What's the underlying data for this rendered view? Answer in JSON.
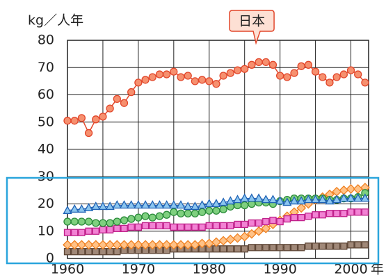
{
  "chart_data": {
    "type": "line",
    "y_label": "kg／人年",
    "x_label": "年",
    "x": [
      1960,
      1961,
      1962,
      1963,
      1964,
      1965,
      1966,
      1967,
      1968,
      1969,
      1970,
      1971,
      1972,
      1973,
      1974,
      1975,
      1976,
      1977,
      1978,
      1979,
      1980,
      1981,
      1982,
      1983,
      1984,
      1985,
      1986,
      1987,
      1988,
      1989,
      1990,
      1991,
      1992,
      1993,
      1994,
      1995,
      1996,
      1997,
      1998,
      1999,
      2000,
      2001,
      2002
    ],
    "xlim": [
      1960,
      2002.5
    ],
    "xticks": [
      1960,
      1970,
      1980,
      1990,
      2000
    ],
    "xgrid": [
      1960,
      1965,
      1970,
      1975,
      1980,
      1985,
      1990,
      1995,
      2000
    ],
    "ylim": [
      0,
      80
    ],
    "yticks": [
      0,
      10,
      20,
      30,
      40,
      50,
      60,
      70,
      80
    ],
    "grid": true,
    "series": [
      {
        "name": "日本",
        "marker": "circle",
        "color": "#e2462a",
        "fill": "#f6906f",
        "values": [
          50.5,
          50.5,
          51.5,
          46,
          51,
          52,
          55,
          58.5,
          57,
          61,
          64.5,
          65.5,
          66.5,
          67.5,
          67.5,
          68.5,
          66.5,
          67,
          65,
          65.5,
          65,
          64,
          67,
          68,
          69,
          69.5,
          71,
          72,
          72,
          71,
          67,
          66.5,
          68,
          70.5,
          71,
          68.5,
          66.5,
          64.5,
          66.5,
          67.5,
          69,
          67.5,
          64.5
        ]
      },
      {
        "marker": "triangle",
        "color": "#1f62b5",
        "fill": "#8cc6ef",
        "values": [
          17.5,
          18,
          18,
          18.5,
          19,
          19,
          19,
          19.5,
          19.5,
          19.5,
          19.5,
          19.5,
          19.5,
          19.5,
          19.5,
          19.5,
          19.5,
          19,
          19,
          19.5,
          20,
          20,
          20.5,
          21,
          21.5,
          22,
          22,
          22,
          21.5,
          21.5,
          21,
          20.5,
          21,
          21,
          21.5,
          21.5,
          21.5,
          21,
          21.5,
          22,
          22,
          22,
          22
        ]
      },
      {
        "marker": "circle",
        "color": "#2a8a3a",
        "fill": "#7fd07f",
        "values": [
          13.5,
          13.5,
          13.5,
          13.5,
          13,
          13,
          13,
          13.5,
          14,
          14.5,
          15,
          15.5,
          15,
          15.5,
          16,
          17,
          16.5,
          16.5,
          16.5,
          17,
          17.5,
          17.5,
          18,
          19,
          19.5,
          19.5,
          20,
          20.5,
          20.5,
          20,
          21,
          21.5,
          22,
          22,
          22,
          22,
          22,
          21.5,
          21.5,
          22,
          22,
          22.5,
          24
        ]
      },
      {
        "marker": "square",
        "color": "#c0208a",
        "fill": "#f282d4",
        "values": [
          9.5,
          9.5,
          9.5,
          10,
          10,
          10.5,
          10.5,
          11,
          11,
          11.5,
          11.5,
          12,
          12,
          12,
          12,
          11.5,
          11.5,
          11.5,
          11.5,
          11.5,
          12,
          12,
          12,
          12,
          12.5,
          12.5,
          13,
          13,
          13.5,
          14,
          13.5,
          14.5,
          15,
          15,
          15.5,
          16,
          16,
          16.5,
          16.5,
          16.5,
          17,
          17,
          17
        ]
      },
      {
        "marker": "diamond",
        "color": "#f08020",
        "fill": "#ffc287",
        "values": [
          5,
          5,
          5,
          5,
          5,
          5,
          5,
          5,
          5,
          5,
          5,
          5,
          5,
          5,
          5,
          5,
          5,
          5,
          5,
          5.5,
          5.5,
          6,
          6.5,
          7,
          7.5,
          8,
          9,
          10,
          11,
          12.5,
          14,
          15.5,
          17,
          18.5,
          20,
          21.5,
          22.5,
          23.5,
          24.5,
          25,
          25.5,
          25.5,
          26
        ]
      },
      {
        "marker": "square",
        "color": "#5e4636",
        "fill": "#a08878",
        "values": [
          2.5,
          2.5,
          2.5,
          2.5,
          2.5,
          2.5,
          2.5,
          2.5,
          3,
          3,
          3,
          3,
          3,
          3,
          3,
          3.5,
          3.5,
          3.5,
          3.5,
          3.5,
          3.5,
          3.5,
          3.5,
          3.5,
          3.5,
          3.5,
          4,
          4,
          4,
          4,
          4,
          4,
          4,
          4,
          4.5,
          4.5,
          4.5,
          4.5,
          4.5,
          4.5,
          5,
          5,
          5
        ]
      }
    ]
  }
}
